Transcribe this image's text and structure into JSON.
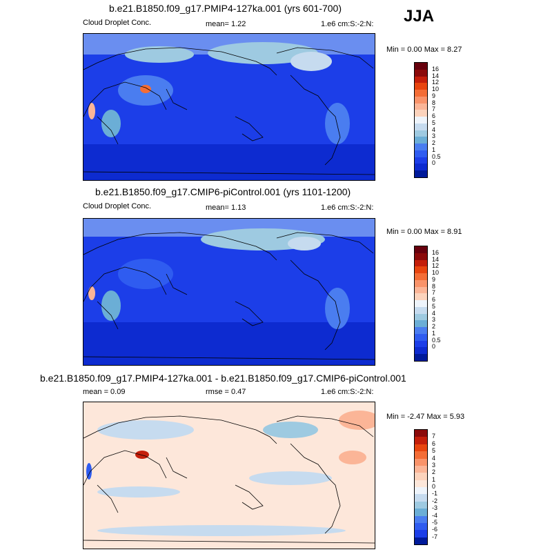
{
  "season": "JJA",
  "panels": [
    {
      "title": "b.e21.B1850.f09_g17.PMIP4-127ka.001 (yrs 601-700)",
      "left_label": "Cloud Droplet Conc.",
      "center_label": "mean=  1.22",
      "right_label": "1.e6 cm:S:-2:N:",
      "minmax": "Min =  0.00 Max =  8.27",
      "colorbar": {
        "labels": [
          "16",
          "14",
          "12",
          "10",
          "9",
          "8",
          "7",
          "6",
          "5",
          "4",
          "3",
          "2",
          "1",
          "0.5",
          "0"
        ],
        "colors": [
          "#67000d",
          "#8b0a0a",
          "#c41e0a",
          "#e8450f",
          "#f46d36",
          "#f9936a",
          "#fbb597",
          "#fcd3bc",
          "#eef4fb",
          "#c6dbef",
          "#9ecae1",
          "#6baed6",
          "#4a7df0",
          "#2f5cf0",
          "#1c3ee8",
          "#0d2bd0",
          "#001a9a"
        ]
      }
    },
    {
      "title": "b.e21.B1850.f09_g17.CMIP6-piControl.001 (yrs 1101-1200)",
      "left_label": "Cloud Droplet Conc.",
      "center_label": "mean=  1.13",
      "right_label": "1.e6 cm:S:-2:N:",
      "minmax": "Min =  0.00 Max =  8.91",
      "colorbar": {
        "labels": [
          "16",
          "14",
          "12",
          "10",
          "9",
          "8",
          "7",
          "6",
          "5",
          "4",
          "3",
          "2",
          "1",
          "0.5",
          "0"
        ],
        "colors": [
          "#67000d",
          "#8b0a0a",
          "#c41e0a",
          "#e8450f",
          "#f46d36",
          "#f9936a",
          "#fbb597",
          "#fcd3bc",
          "#eef4fb",
          "#c6dbef",
          "#9ecae1",
          "#6baed6",
          "#4a7df0",
          "#2f5cf0",
          "#1c3ee8",
          "#0d2bd0",
          "#001a9a"
        ]
      }
    },
    {
      "title": "b.e21.B1850.f09_g17.PMIP4-127ka.001 - b.e21.B1850.f09_g17.CMIP6-piControl.001",
      "left_label": "mean =  0.09",
      "center_label": "rmse =  0.47",
      "right_label": "1.e6 cm:S:-2:N:",
      "minmax": "Min = -2.47 Max =  5.93",
      "colorbar": {
        "labels": [
          "7",
          "6",
          "5",
          "4",
          "3",
          "2",
          "1",
          "0",
          "-1",
          "-2",
          "-3",
          "-4",
          "-5",
          "-6",
          "-7"
        ],
        "colors": [
          "#8b0a0a",
          "#c41e0a",
          "#e8450f",
          "#f46d36",
          "#f9936a",
          "#fbb597",
          "#fcd3bc",
          "#fde7da",
          "#eef4fb",
          "#c6dbef",
          "#9ecae1",
          "#6baed6",
          "#4a7df0",
          "#2f5cf0",
          "#1c3ee8",
          "#001a9a"
        ]
      }
    }
  ]
}
